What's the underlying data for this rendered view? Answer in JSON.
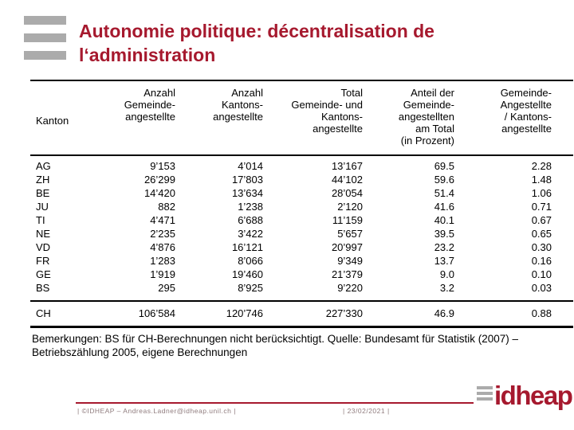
{
  "colors": {
    "accent_red": "#A6192E",
    "logo_bar_gray": "#ABABAB",
    "footer_text_gray": "#8F7B7D",
    "table_text": "#000000"
  },
  "header": {
    "title": "Autonomie politique: décentralisation de l‘administration"
  },
  "table": {
    "columns": [
      {
        "label": "Kanton"
      },
      {
        "label": "Anzahl\nGemeinde-\nangestellte"
      },
      {
        "label": "Anzahl\nKantons-\nangestellte"
      },
      {
        "label": "Total\nGemeinde- und\nKantons-\nangestellte"
      },
      {
        "label": "Anteil der\nGemeinde-\nangestellten\nam Total\n(in Prozent)"
      },
      {
        "label": "Gemeinde-\nAngestellte\n/ Kantons-\nangestellte"
      }
    ],
    "rows": [
      {
        "kanton": "AG",
        "values": [
          "9’153",
          "4’014",
          "13’167",
          "69.5",
          "2.28"
        ]
      },
      {
        "kanton": "ZH",
        "values": [
          "26’299",
          "17’803",
          "44’102",
          "59.6",
          "1.48"
        ]
      },
      {
        "kanton": "BE",
        "values": [
          "14’420",
          "13’634",
          "28’054",
          "51.4",
          "1.06"
        ]
      },
      {
        "kanton": "JU",
        "values": [
          "882",
          "1’238",
          "2’120",
          "41.6",
          "0.71"
        ]
      },
      {
        "kanton": "TI",
        "values": [
          "4’471",
          "6’688",
          "11’159",
          "40.1",
          "0.67"
        ]
      },
      {
        "kanton": "NE",
        "values": [
          "2’235",
          "3’422",
          "5’657",
          "39.5",
          "0.65"
        ]
      },
      {
        "kanton": "VD",
        "values": [
          "4’876",
          "16’121",
          "20’997",
          "23.2",
          "0.30"
        ]
      },
      {
        "kanton": "FR",
        "values": [
          "1’283",
          "8’066",
          "9’349",
          "13.7",
          "0.16"
        ]
      },
      {
        "kanton": "GE",
        "values": [
          "1’919",
          "19’460",
          "21’379",
          "9.0",
          "0.10"
        ]
      },
      {
        "kanton": "BS",
        "values": [
          "295",
          "8’925",
          "9’220",
          "3.2",
          "0.03"
        ]
      }
    ],
    "total_row": {
      "kanton": "CH",
      "values": [
        "106’584",
        "120’746",
        "227’330",
        "46.9",
        "0.88"
      ]
    },
    "remarks": "Bemerkungen: BS für CH-Berechnungen nicht berücksichtigt. Quelle: Bundesamt für Statistik (2007) – Betriebszählung 2005, eigene Berechnungen"
  },
  "footer": {
    "copyright": "| ©IDHEAP – Andreas.Ladner@idheap.unil.ch |",
    "date": "| 23/02/2021 |",
    "logo_text": "idheap"
  }
}
